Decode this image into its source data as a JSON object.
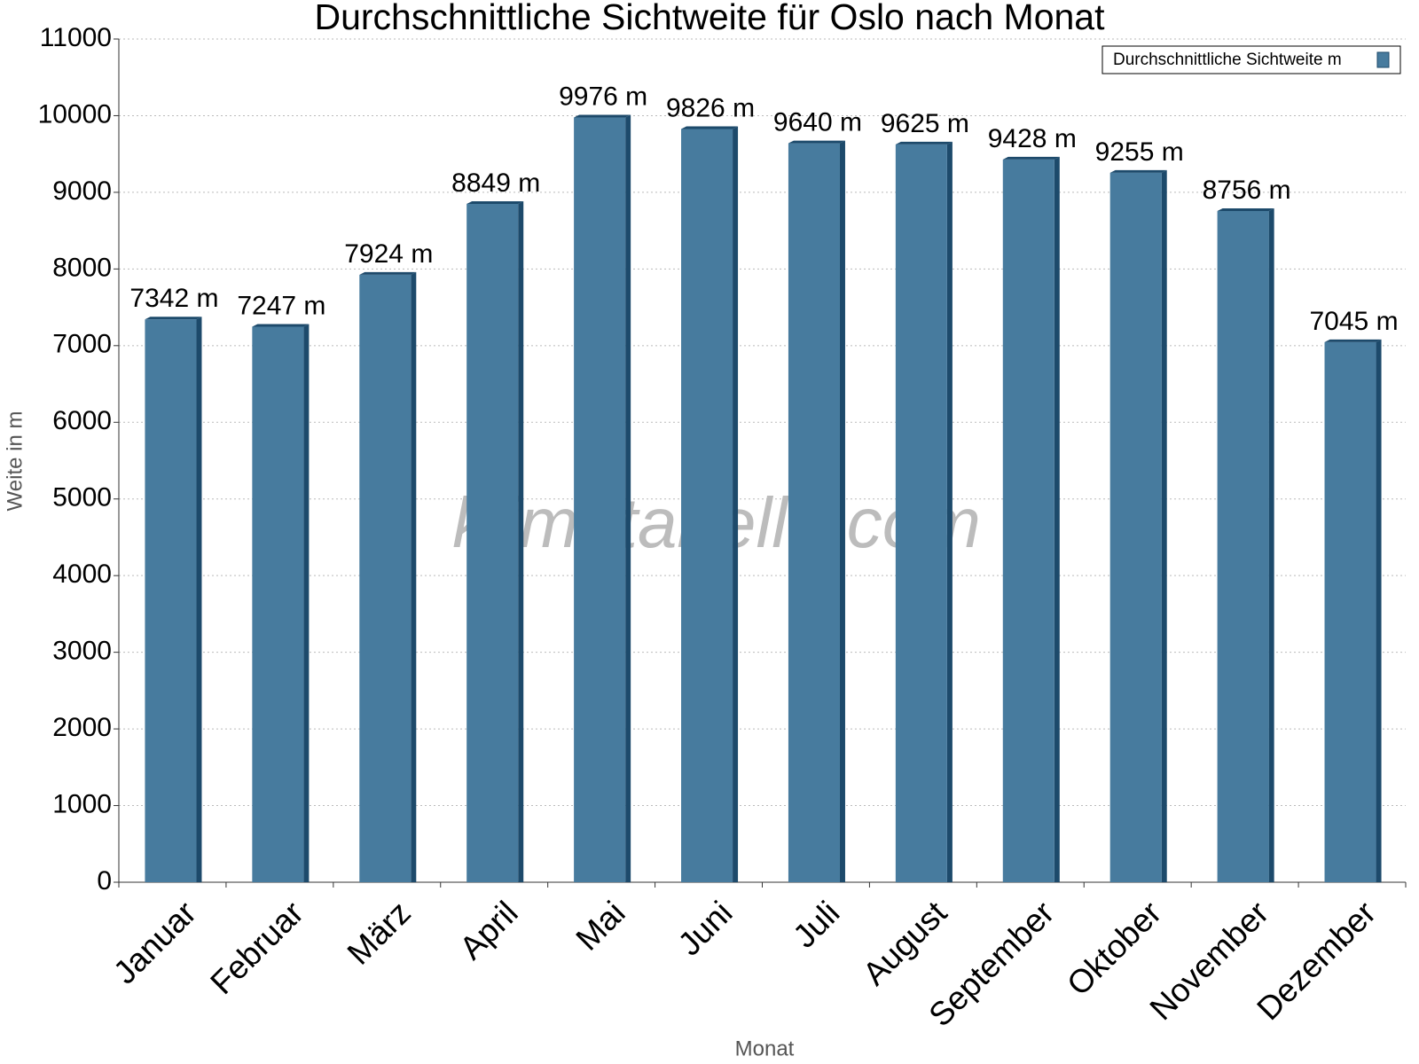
{
  "chart_data": {
    "type": "bar",
    "title": "Durchschnittliche Sichtweite für Oslo nach Monat",
    "x_label": "Monat",
    "y_label": "Weite in m",
    "watermark": "klimatabelle.com",
    "categories": [
      "Januar",
      "Februar",
      "März",
      "April",
      "Mai",
      "Juni",
      "Juli",
      "August",
      "September",
      "Oktober",
      "November",
      "Dezember"
    ],
    "series": [
      {
        "name": "Durchschnittliche Sichtweite m",
        "color": "#477b9e",
        "values": [
          7342,
          7247,
          7924,
          8849,
          9976,
          9826,
          9640,
          9625,
          9428,
          9255,
          8756,
          7045
        ],
        "value_labels": [
          "7342 m",
          "7247 m",
          "7924 m",
          "8849 m",
          "9976 m",
          "9826 m",
          "9640 m",
          "9625 m",
          "9428 m",
          "9255 m",
          "8756 m",
          "7045 m"
        ]
      }
    ],
    "ylim": [
      0,
      11000
    ],
    "yticks": [
      0,
      1000,
      2000,
      3000,
      4000,
      5000,
      6000,
      7000,
      8000,
      9000,
      10000,
      11000
    ],
    "grid": true,
    "legend": "top-right"
  }
}
